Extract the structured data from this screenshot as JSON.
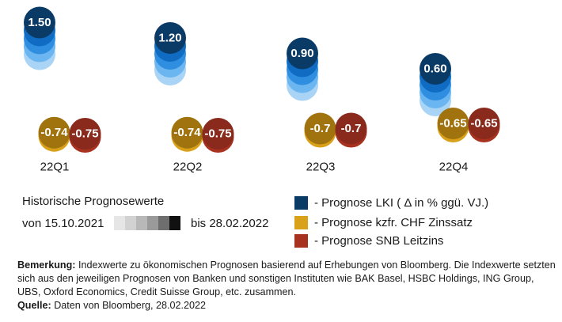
{
  "chart_data": {
    "type": "scatter",
    "categories": [
      "22Q1",
      "22Q2",
      "22Q3",
      "22Q4"
    ],
    "series": [
      {
        "name": "- Prognose LKI ( Δ in % ggü. VJ.)",
        "color": "#0a3a66",
        "values": [
          1.5,
          1.2,
          0.9,
          0.6
        ],
        "value_labels": [
          "1.50",
          "1.20",
          "0.90",
          "0.60"
        ],
        "history_colors": [
          "#a9d4f6",
          "#6bb6f1",
          "#2f8ee0",
          "#0f6cc2"
        ]
      },
      {
        "name": "- Prognose kzfr. CHF Zinssatz",
        "color": "#a0730f",
        "values": [
          -0.74,
          -0.74,
          -0.7,
          -0.65
        ],
        "value_labels": [
          "-0.74",
          "-0.74",
          "-0.7",
          "-0.65"
        ],
        "history_colors": [
          "#d9a01a"
        ]
      },
      {
        "name": "- Prognose SNB Leitzins",
        "color": "#8a2a1c",
        "values": [
          -0.75,
          -0.75,
          -0.7,
          -0.65
        ],
        "value_labels": [
          "-0.75",
          "-0.75",
          "-0.7",
          "-0.65"
        ],
        "history_colors": [
          "#a83220"
        ]
      }
    ]
  },
  "history": {
    "title": "Historische Prognosewerte",
    "from_label": "von 15.10.2021",
    "to_label": "bis 28.02.2022",
    "gradient_colors": [
      "#e6e6e6",
      "#d2d2d2",
      "#b8b8b8",
      "#9a9a9a",
      "#6e6e6e",
      "#111111"
    ]
  },
  "legend": [
    {
      "label": "- Prognose LKI ( Δ in % ggü. VJ.)",
      "color": "#0a3a66"
    },
    {
      "label": "- Prognose kzfr. CHF Zinssatz",
      "color": "#d9a01a"
    },
    {
      "label": "- Prognose SNB Leitzins",
      "color": "#a83220"
    }
  ],
  "notes": {
    "remark_label": "Bemerkung:",
    "remark_text": " Indexwerte zu ökonomischen Prognosen basierend auf Erhebungen von Bloomberg. Die Indexwerte setzten sich aus den jeweiligen Prognosen von Banken und sonstigen Instituten wie BAK Basel, HSBC Holdings, ING Group, UBS, Oxford Economics, Credit Suisse Group, etc. zusammen.",
    "source_label": "Quelle:",
    "source_text": " Daten von Bloomberg, 28.02.2022"
  }
}
